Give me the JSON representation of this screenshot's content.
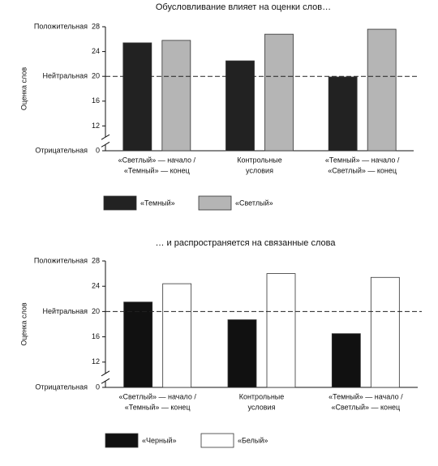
{
  "chart_data": [
    {
      "type": "bar",
      "title": "Обусловливание влияет на оценки слов…",
      "ylabel": "Оценка слов",
      "categories": [
        [
          "«Светлый» — начало /",
          "«Темный» — конец"
        ],
        [
          "Контрольные",
          "условия"
        ],
        [
          "«Темный» — начало /",
          "«Светлый» — конец"
        ]
      ],
      "series": [
        {
          "name": "«Темный»",
          "color": "#222222",
          "values": [
            25.4,
            22.5,
            19.9
          ]
        },
        {
          "name": "«Светлый»",
          "color": "#b5b5b5",
          "values": [
            25.8,
            26.8,
            27.6
          ]
        }
      ],
      "ylim": [
        0,
        28
      ],
      "yticks": [
        0,
        12,
        16,
        20,
        24,
        28
      ],
      "axis_break": true,
      "ylevels": [
        {
          "value": 28,
          "label": "Положительная"
        },
        {
          "value": 20,
          "label": "Нейтральная"
        },
        {
          "value": 0,
          "label": "Отрицательная"
        }
      ],
      "reference_line": 20
    },
    {
      "type": "bar",
      "title": "… и распространяется на связанные слова",
      "ylabel": "Оценка слов",
      "categories": [
        [
          "«Светлый» — начало /",
          "«Темный» — конец"
        ],
        [
          "Контрольные",
          "условия"
        ],
        [
          "«Темный» — начало /",
          "«Светлый» — конец"
        ]
      ],
      "series": [
        {
          "name": "«Черный»",
          "color": "#111111",
          "values": [
            21.5,
            18.7,
            16.5
          ]
        },
        {
          "name": "«Белый»",
          "color": "#ffffff",
          "values": [
            24.4,
            26,
            25.4
          ]
        }
      ],
      "ylim": [
        0,
        28
      ],
      "yticks": [
        0,
        12,
        16,
        20,
        24,
        28
      ],
      "axis_break": true,
      "ylevels": [
        {
          "value": 28,
          "label": "Положительная"
        },
        {
          "value": 20,
          "label": "Нейтральная"
        },
        {
          "value": 0,
          "label": "Отрицательная"
        }
      ],
      "reference_line": 20
    }
  ]
}
